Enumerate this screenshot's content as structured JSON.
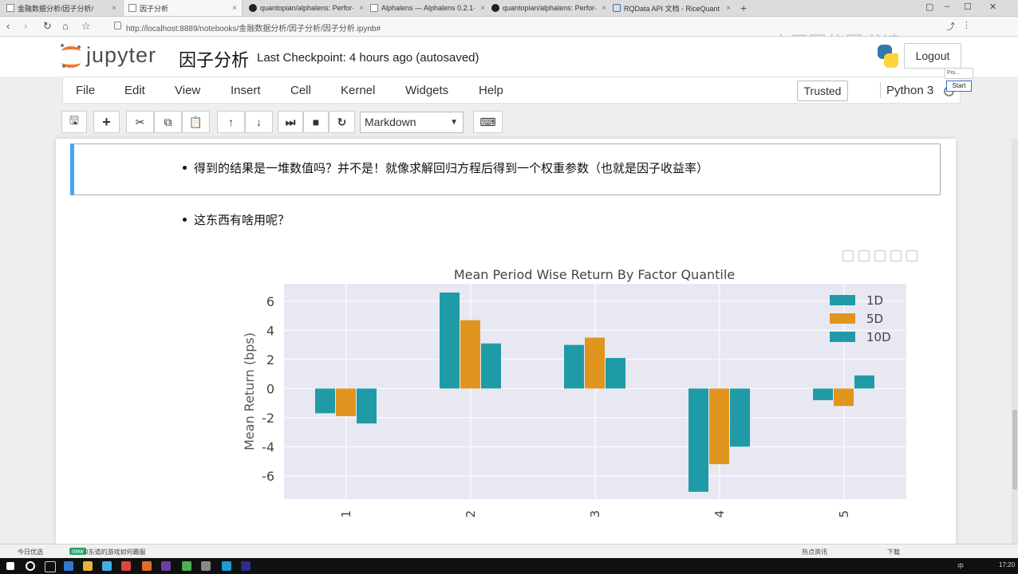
{
  "browser": {
    "tabs": [
      {
        "label": "金融数据分析/因子分析/",
        "icon": "folder-doc-icon",
        "active": false
      },
      {
        "label": "因子分析",
        "icon": "doc-icon",
        "active": true
      },
      {
        "label": "quantopian/alphalens: Perfor·",
        "icon": "github-icon",
        "active": false
      },
      {
        "label": "Alphalens — Alphalens 0.2.1·",
        "icon": "doc-icon",
        "active": false
      },
      {
        "label": "quantopian/alphalens: Perfor·",
        "icon": "github-icon",
        "active": false
      },
      {
        "label": "RQData API 文档 - RiceQuant",
        "icon": "ricequant-icon",
        "active": false
      }
    ],
    "new_tab": "+",
    "url": "http://localhost:8889/notebooks/金融数据分析/因子分析/因子分析.ipynb#",
    "watermark": "AI大王图的图书馆一"
  },
  "jupyter": {
    "logo_text": "jupyter",
    "notebook_title": "因子分析",
    "checkpoint": "Last Checkpoint: 4 hours ago (autosaved)",
    "logout": "Logout",
    "menu": [
      "File",
      "Edit",
      "View",
      "Insert",
      "Cell",
      "Kernel",
      "Widgets",
      "Help"
    ],
    "trusted": "Trusted",
    "kernel": "Python 3",
    "popup_small": "Poi...",
    "popup_start": "Start",
    "cell_type": "Markdown"
  },
  "toolbar": {
    "icons": [
      "save-icon",
      "plus-icon",
      "cut-icon",
      "copy-icon",
      "paste-icon",
      "arrow-up-icon",
      "arrow-down-icon",
      "run-icon",
      "stop-icon",
      "restart-icon",
      "keyboard-icon"
    ]
  },
  "cells": {
    "bullet_1": "得到的结果是一堆数值吗？并不是！就像求解回归方程后得到一个权重参数（也就是因子收益率）",
    "bullet_2": "这东西有啥用呢？"
  },
  "chart_data": {
    "type": "bar",
    "title": "Mean Period Wise Return By Factor Quantile",
    "xlabel": "",
    "ylabel": "Mean Return (bps)",
    "categories": [
      "1",
      "2",
      "3",
      "4",
      "5"
    ],
    "series": [
      {
        "name": "1D",
        "color": "#1f9ba7",
        "values": [
          -1.7,
          6.6,
          3.0,
          -7.1,
          -0.8
        ]
      },
      {
        "name": "5D",
        "color": "#e0951f",
        "values": [
          -1.9,
          4.7,
          3.5,
          -5.2,
          -1.2
        ]
      },
      {
        "name": "10D",
        "color": "#1f9ba7",
        "values": [
          -2.4,
          3.1,
          2.1,
          -4.0,
          0.9
        ]
      }
    ],
    "ylim": [
      -7.6,
      7.2
    ],
    "yticks": [
      -6,
      -4,
      -2,
      0,
      2,
      4,
      6
    ],
    "grid": true,
    "legend": "top-right",
    "background": "#e8e8f3"
  },
  "status": {
    "left_label": "今日优选",
    "badge": "new",
    "news": "0东道的游戏如何霸服",
    "right_items": [
      "热点资讯",
      "下载"
    ],
    "ime": "中",
    "clock": "17:20"
  }
}
